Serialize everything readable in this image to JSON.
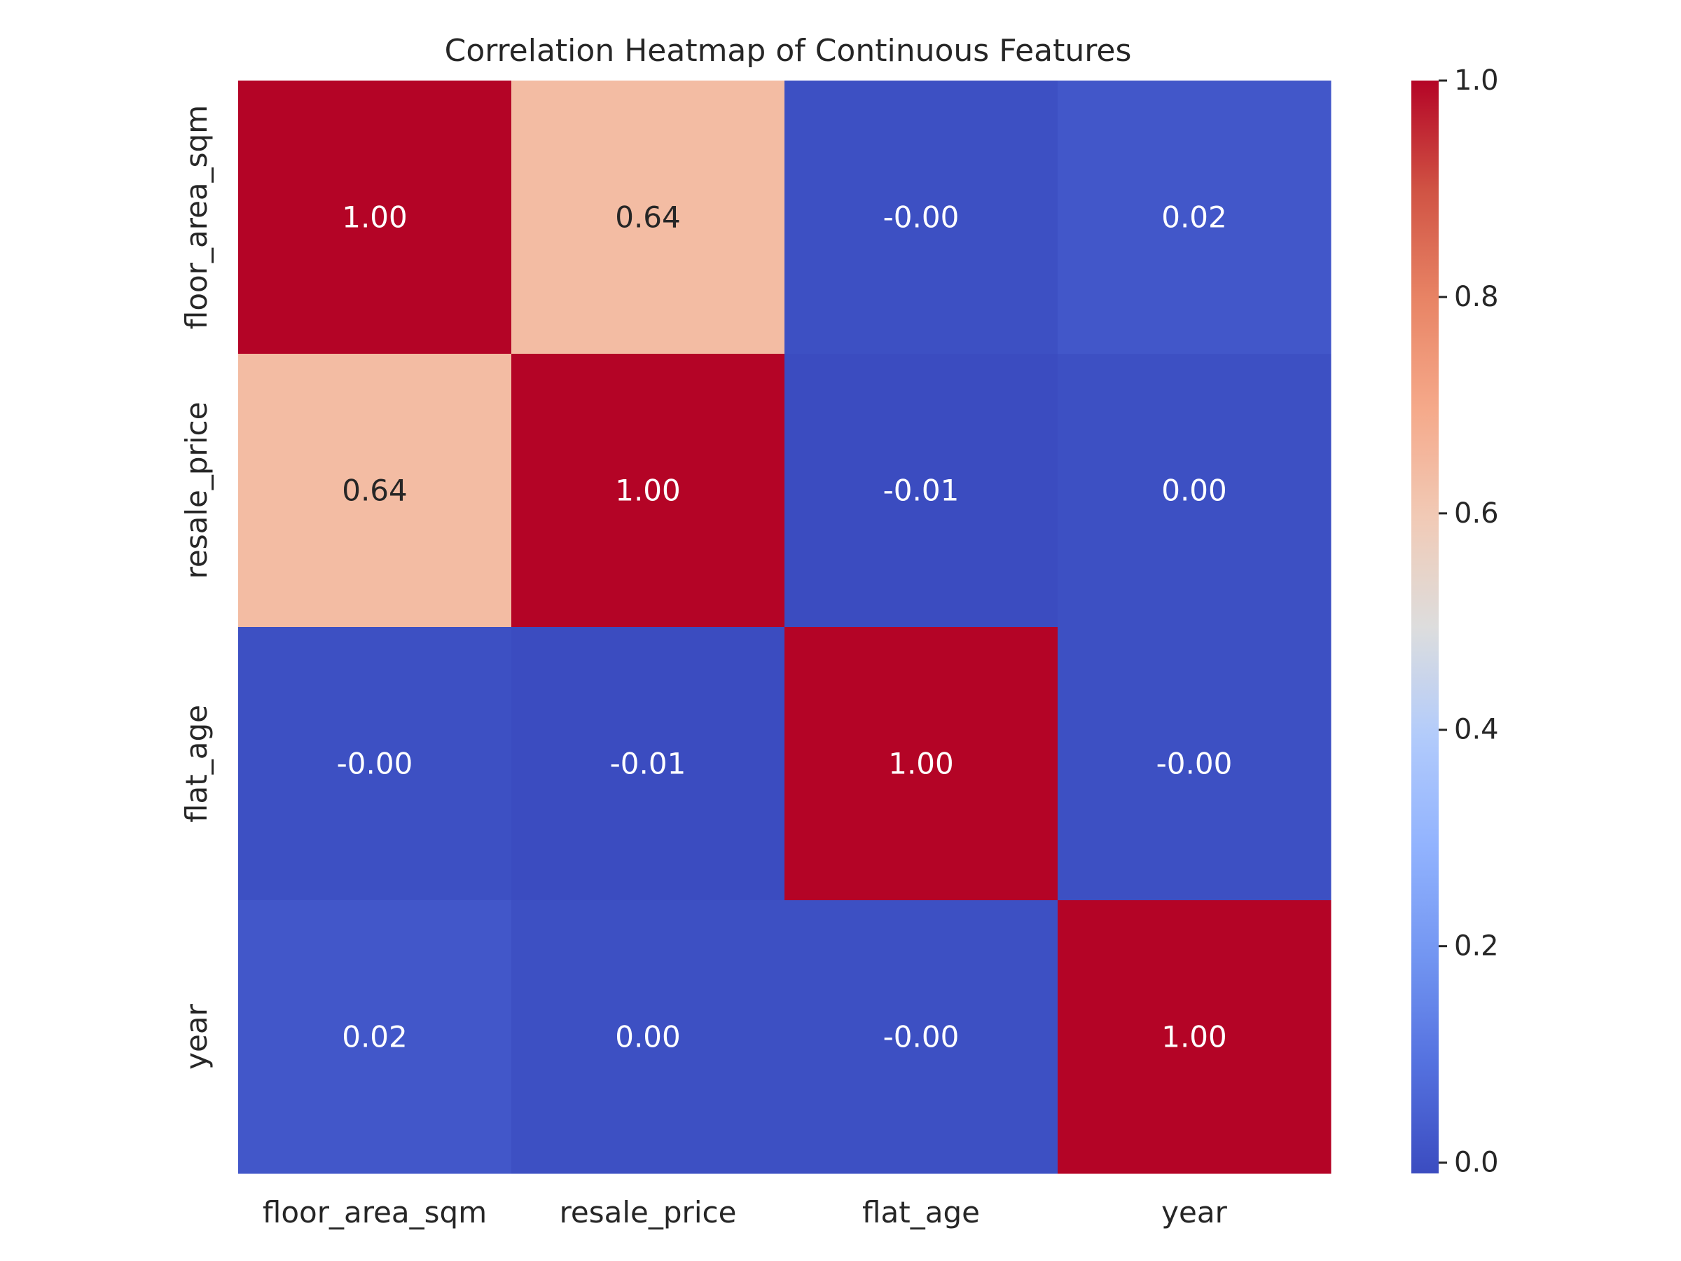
{
  "chart_data": {
    "type": "heatmap",
    "title": "Correlation Heatmap of Continuous Features",
    "xlabel": "",
    "ylabel": "",
    "x_categories": [
      "floor_area_sqm",
      "resale_price",
      "flat_age",
      "year"
    ],
    "y_categories": [
      "floor_area_sqm",
      "resale_price",
      "flat_age",
      "year"
    ],
    "values": [
      [
        1.0,
        0.64,
        -0.0,
        0.02
      ],
      [
        0.64,
        1.0,
        -0.01,
        0.0
      ],
      [
        -0.0,
        -0.01,
        1.0,
        -0.0
      ],
      [
        0.02,
        0.0,
        -0.0,
        1.0
      ]
    ],
    "annotations": [
      [
        "1.00",
        "0.64",
        "-0.00",
        "0.02"
      ],
      [
        "0.64",
        "1.00",
        "-0.01",
        "0.00"
      ],
      [
        "-0.00",
        "-0.01",
        "1.00",
        "-0.00"
      ],
      [
        "0.02",
        "0.00",
        "-0.00",
        "1.00"
      ]
    ],
    "colormap": "coolwarm",
    "vmin": -0.01,
    "vmax": 1.0,
    "colorbar": {
      "ticks": [
        "0.0",
        "0.2",
        "0.4",
        "0.6",
        "0.8",
        "1.0"
      ],
      "tick_values": [
        0.0,
        0.2,
        0.4,
        0.6,
        0.8,
        1.0
      ],
      "placement": "right"
    },
    "grid": false
  }
}
